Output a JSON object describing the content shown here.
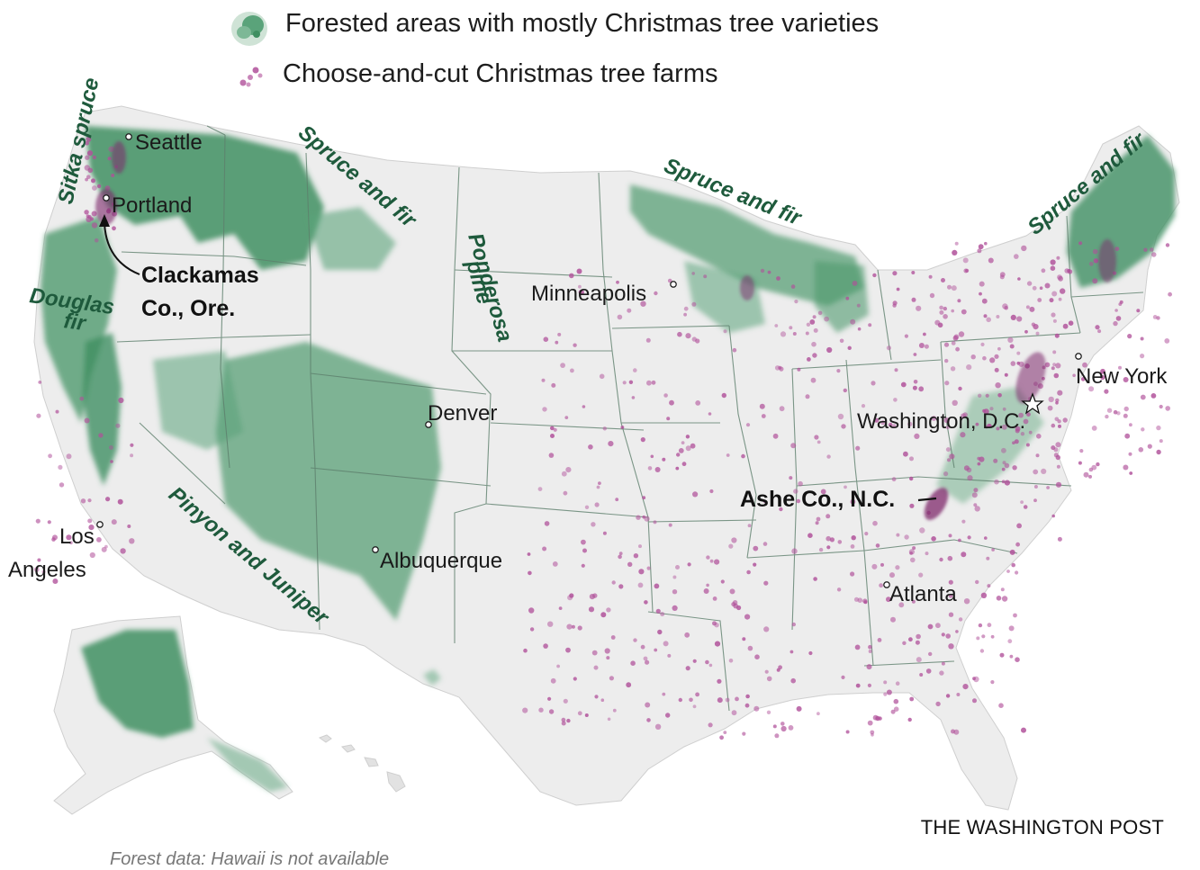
{
  "legend": {
    "forest_label": "Forested areas with mostly Christmas tree varieties",
    "farms_label": "Choose-and-cut Christmas tree farms",
    "forest_icon": "forest-patch-icon",
    "farms_icon": "farm-dots-icon"
  },
  "colors": {
    "forest": "#3f8f61",
    "forest_light": "#9fc9ad",
    "farm_dot": "#b0509a",
    "land": "#eeeeee",
    "state_border": "#5d7f6c",
    "label_green": "#1e5a3c"
  },
  "cities": {
    "seattle": "Seattle",
    "portland": "Portland",
    "minneapolis": "Minneapolis",
    "denver": "Denver",
    "los_angeles_line1": "Los",
    "los_angeles_line2": "Angeles",
    "albuquerque": "Albuquerque",
    "new_york": "New York",
    "washington_dc": "Washington, D.C.",
    "atlanta": "Atlanta"
  },
  "callouts": {
    "clackamas_line1": "Clackamas",
    "clackamas_line2": "Co., Ore.",
    "ashe": "Ashe Co., N.C."
  },
  "forest_labels": {
    "sitka": "Sitka spruce",
    "douglas_line1": "Douglas",
    "douglas_line2": "fir",
    "spruce_fir_west": "Spruce and fir",
    "ponderosa_line1": "Ponderosa",
    "ponderosa_line2": "pine",
    "spruce_fir_midwest": "Spruce and fir",
    "spruce_fir_northeast": "Spruce and fir",
    "pinyon": "Pinyon and Juniper"
  },
  "credit": "THE WASHINGTON POST",
  "footnote": "Forest data: Hawaii is not available"
}
